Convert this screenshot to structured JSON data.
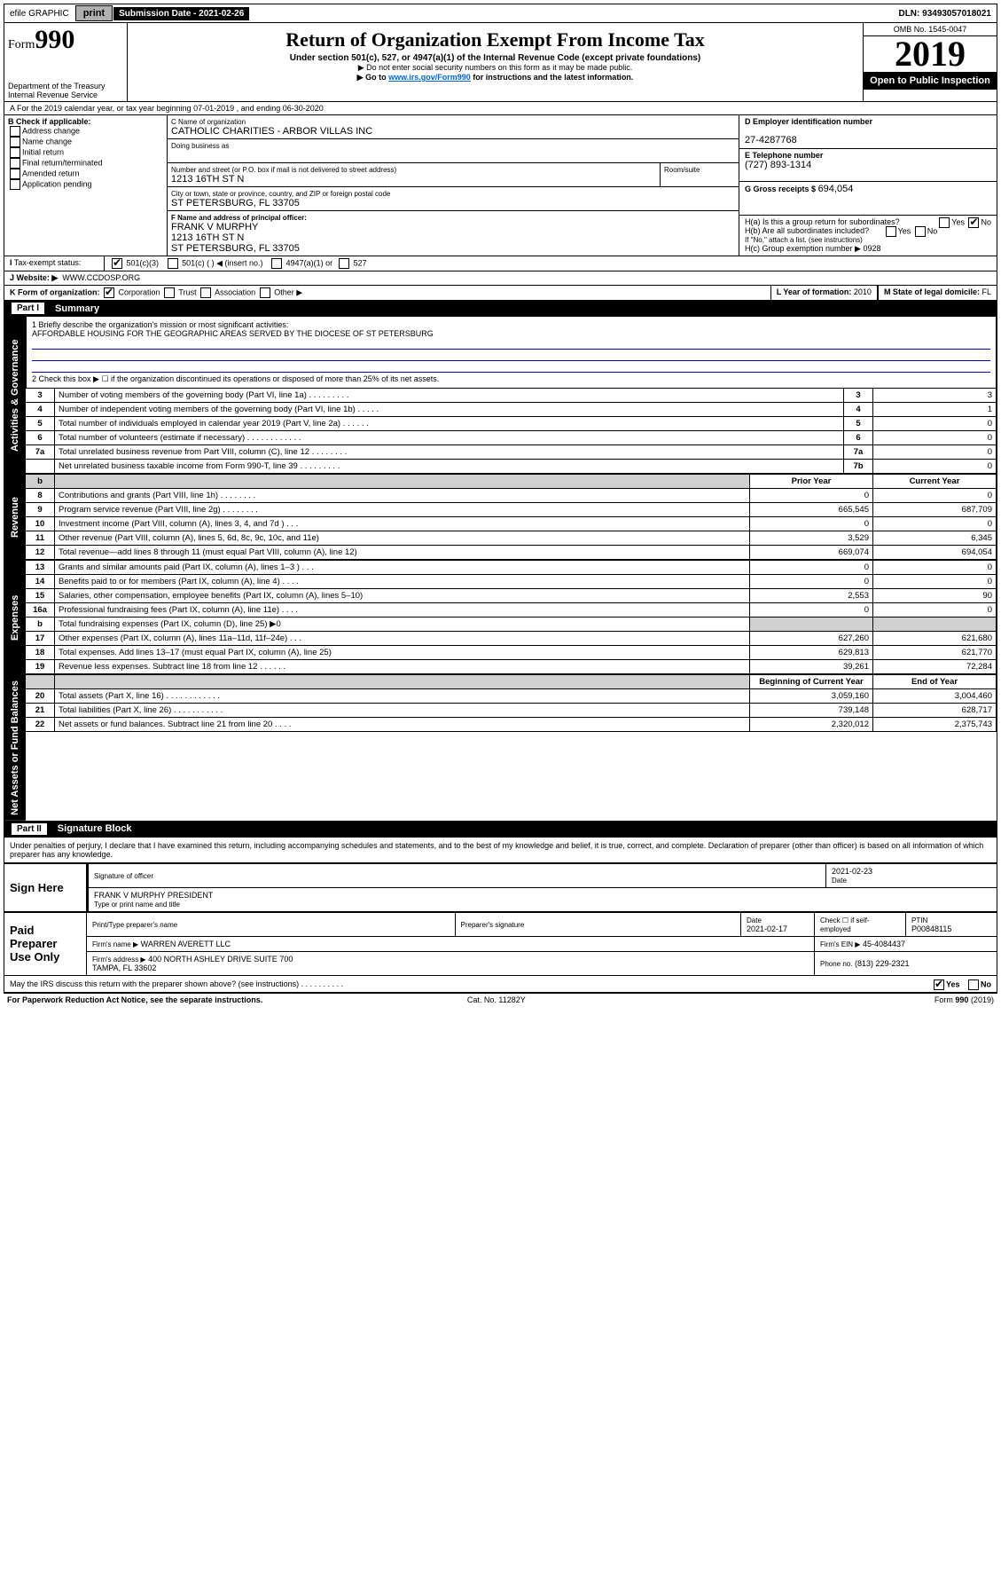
{
  "topbar": {
    "efile": "efile GRAPHIC",
    "print": "print",
    "subdate_label": "Submission Date - 2021-02-26",
    "dln": "DLN: 93493057018021"
  },
  "header": {
    "form_label": "Form",
    "form_no": "990",
    "dept": "Department of the Treasury",
    "irs": "Internal Revenue Service",
    "title": "Return of Organization Exempt From Income Tax",
    "sub": "Under section 501(c), 527, or 4947(a)(1) of the Internal Revenue Code (except private foundations)",
    "note1": "▶ Do not enter social security numbers on this form as it may be made public.",
    "note2_a": "▶ Go to ",
    "note2_link": "www.irs.gov/Form990",
    "note2_b": " for instructions and the latest information.",
    "omb": "OMB No. 1545-0047",
    "year": "2019",
    "open": "Open to Public Inspection"
  },
  "bar_a": "A For the 2019 calendar year, or tax year beginning 07-01-2019    , and ending 06-30-2020",
  "box_b": {
    "label": "B Check if applicable:",
    "opts": [
      "Address change",
      "Name change",
      "Initial return",
      "Final return/terminated",
      "Amended return",
      "Application pending"
    ],
    "checked": []
  },
  "box_c": {
    "name_label": "C Name of organization",
    "name": "CATHOLIC CHARITIES - ARBOR VILLAS INC",
    "dba_label": "Doing business as",
    "dba": "",
    "addr_label": "Number and street (or P.O. box if mail is not delivered to street address)",
    "room_label": "Room/suite",
    "addr": "1213 16TH ST N",
    "city_label": "City or town, state or province, country, and ZIP or foreign postal code",
    "city": "ST PETERSBURG, FL  33705",
    "officer_label": "F Name and address of principal officer:",
    "officer": "FRANK V MURPHY\n1213 16TH ST N\nST PETERSBURG, FL  33705"
  },
  "box_d": {
    "label": "D Employer identification number",
    "val": "27-4287768"
  },
  "box_e": {
    "label": "E Telephone number",
    "val": "(727) 893-1314"
  },
  "box_g": {
    "label": "G Gross receipts $",
    "val": "694,054"
  },
  "box_h": {
    "ha": "H(a)  Is this a group return for subordinates?",
    "ha_yes": "Yes",
    "ha_no": "No",
    "ha_val": "No",
    "hb": "H(b)  Are all subordinates included?",
    "hb_note": "If \"No,\" attach a list. (see instructions)",
    "hc": "H(c)  Group exemption number ▶",
    "hc_val": "0928"
  },
  "tax_status": {
    "label": "Tax-exempt status:",
    "opt1": "501(c)(3)",
    "opt2": "501(c) (   ) ◀ (insert no.)",
    "opt3": "4947(a)(1) or",
    "opt4": "527",
    "checked": "501(c)(3)"
  },
  "website": {
    "label": "J   Website: ▶",
    "val": "WWW.CCDOSP.ORG"
  },
  "box_k": {
    "label": "K Form of organization:",
    "opts": [
      "Corporation",
      "Trust",
      "Association",
      "Other ▶"
    ],
    "checked": "Corporation"
  },
  "box_l": {
    "label": "L Year of formation:",
    "val": "2010"
  },
  "box_m": {
    "label": "M State of legal domicile:",
    "val": "FL"
  },
  "part1": {
    "num": "Part I",
    "title": "Summary"
  },
  "q1": {
    "label": "1  Briefly describe the organization's mission or most significant activities:",
    "val": "AFFORDABLE HOUSING FOR THE GEOGRAPHIC AREAS SERVED BY THE DIOCESE OF ST PETERSBURG"
  },
  "q2": "2  Check this box ▶ ☐  if the organization discontinued its operations or disposed of more than 25% of its net assets.",
  "gov_rows": [
    {
      "n": "3",
      "d": "Number of voting members of the governing body (Part VI, line 1a)   .    .    .    .    .    .    .    .    .",
      "b": "3",
      "v": "3"
    },
    {
      "n": "4",
      "d": "Number of independent voting members of the governing body (Part VI, line 1b)    .    .    .    .    .",
      "b": "4",
      "v": "1"
    },
    {
      "n": "5",
      "d": "Total number of individuals employed in calendar year 2019 (Part V, line 2a)   .    .    .    .    .    .",
      "b": "5",
      "v": "0"
    },
    {
      "n": "6",
      "d": "Total number of volunteers (estimate if necessary)   .    .    .    .    .    .    .    .    .    .    .    .",
      "b": "6",
      "v": "0"
    },
    {
      "n": "7a",
      "d": "Total unrelated business revenue from Part VIII, column (C), line 12   .    .    .    .    .    .    .    .",
      "b": "7a",
      "v": "0"
    },
    {
      "n": "",
      "d": "Net unrelated business taxable income from Form 990-T, line 39   .    .    .    .    .    .    .    .    .",
      "b": "7b",
      "v": "0"
    }
  ],
  "rev_hdr": {
    "b": "b",
    "py": "Prior Year",
    "cy": "Current Year"
  },
  "rev_rows": [
    {
      "n": "8",
      "d": "Contributions and grants (Part VIII, line 1h)   .    .    .    .    .    .    .    .",
      "py": "0",
      "cy": "0"
    },
    {
      "n": "9",
      "d": "Program service revenue (Part VIII, line 2g)   .    .    .    .    .    .    .    .",
      "py": "665,545",
      "cy": "687,709"
    },
    {
      "n": "10",
      "d": "Investment income (Part VIII, column (A), lines 3, 4, and 7d )   .    .    .",
      "py": "0",
      "cy": "0"
    },
    {
      "n": "11",
      "d": "Other revenue (Part VIII, column (A), lines 5, 6d, 8c, 9c, 10c, and 11e)",
      "py": "3,529",
      "cy": "6,345"
    },
    {
      "n": "12",
      "d": "Total revenue—add lines 8 through 11 (must equal Part VIII, column (A), line 12)",
      "py": "669,074",
      "cy": "694,054"
    }
  ],
  "exp_rows": [
    {
      "n": "13",
      "d": "Grants and similar amounts paid (Part IX, column (A), lines 1–3 )   .    .    .",
      "py": "0",
      "cy": "0"
    },
    {
      "n": "14",
      "d": "Benefits paid to or for members (Part IX, column (A), line 4)   .    .    .    .",
      "py": "0",
      "cy": "0"
    },
    {
      "n": "15",
      "d": "Salaries, other compensation, employee benefits (Part IX, column (A), lines 5–10)",
      "py": "2,553",
      "cy": "90"
    },
    {
      "n": "16a",
      "d": "Professional fundraising fees (Part IX, column (A), line 11e)   .    .    .    .",
      "py": "0",
      "cy": "0"
    },
    {
      "n": "b",
      "d": "Total fundraising expenses (Part IX, column (D), line 25) ▶0",
      "py": "",
      "cy": "",
      "shade": true
    },
    {
      "n": "17",
      "d": "Other expenses (Part IX, column (A), lines 11a–11d, 11f–24e)   .    .    .",
      "py": "627,260",
      "cy": "621,680"
    },
    {
      "n": "18",
      "d": "Total expenses. Add lines 13–17 (must equal Part IX, column (A), line 25)",
      "py": "629,813",
      "cy": "621,770"
    },
    {
      "n": "19",
      "d": "Revenue less expenses. Subtract line 18 from line 12   .    .    .    .    .    .",
      "py": "39,261",
      "cy": "72,284"
    }
  ],
  "na_hdr": {
    "py": "Beginning of Current Year",
    "cy": "End of Year"
  },
  "na_rows": [
    {
      "n": "20",
      "d": "Total assets (Part X, line 16)   .    .    .    .    .    .    .    .    .    .    .    .",
      "py": "3,059,160",
      "cy": "3,004,460"
    },
    {
      "n": "21",
      "d": "Total liabilities (Part X, line 26)   .    .    .    .    .    .    .    .    .    .    .",
      "py": "739,148",
      "cy": "628,717"
    },
    {
      "n": "22",
      "d": "Net assets or fund balances. Subtract line 21 from line 20   .    .    .    .",
      "py": "2,320,012",
      "cy": "2,375,743"
    }
  ],
  "part2": {
    "num": "Part II",
    "title": "Signature Block"
  },
  "perjury": "Under penalties of perjury, I declare that I have examined this return, including accompanying schedules and statements, and to the best of my knowledge and belief, it is true, correct, and complete. Declaration of preparer (other than officer) is based on all information of which preparer has any knowledge.",
  "sign": {
    "here": "Sign Here",
    "sig_label": "Signature of officer",
    "date": "2021-02-23",
    "date_label": "Date",
    "name": "FRANK V MURPHY  PRESIDENT",
    "name_label": "Type or print name and title"
  },
  "paid": {
    "label": "Paid Preparer Use Only",
    "h1": "Print/Type preparer's name",
    "h2": "Preparer's signature",
    "h3": "Date",
    "h3v": "2021-02-17",
    "h4": "Check ☐ if self-employed",
    "h5": "PTIN",
    "h5v": "P00848115",
    "firm_label": "Firm's name    ▶",
    "firm": "WARREN AVERETT LLC",
    "ein_label": "Firm's EIN ▶",
    "ein": "45-4084437",
    "addr_label": "Firm's address ▶",
    "addr": "400 NORTH ASHLEY DRIVE SUITE 700\nTAMPA, FL  33602",
    "phone_label": "Phone no.",
    "phone": "(813) 229-2321"
  },
  "discuss": "May the IRS discuss this return with the preparer shown above? (see instructions)   .    .    .    .    .    .    .    .    .    .",
  "discuss_yes": "Yes",
  "discuss_no": "No",
  "discuss_val": "Yes",
  "footer": {
    "l": "For Paperwork Reduction Act Notice, see the separate instructions.",
    "m": "Cat. No. 11282Y",
    "r": "Form 990 (2019)"
  },
  "side_labels": {
    "gov": "Activities & Governance",
    "rev": "Revenue",
    "exp": "Expenses",
    "na": "Net Assets or Fund Balances"
  }
}
